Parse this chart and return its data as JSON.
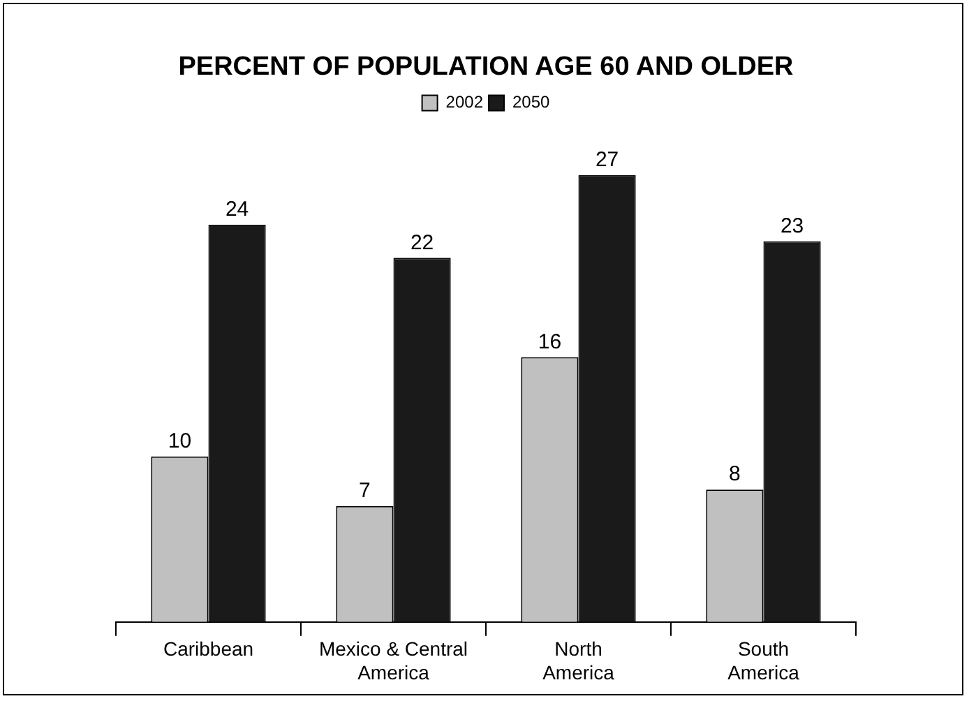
{
  "chart_data": {
    "type": "bar",
    "title": "PERCENT OF POPULATION AGE 60 AND OLDER",
    "categories": [
      "Caribbean",
      "Mexico & Central\nAmerica",
      "North\nAmerica",
      "South\nAmerica"
    ],
    "series": [
      {
        "name": "2002",
        "color": "#c0c0c0",
        "values": [
          10,
          7,
          16,
          8
        ]
      },
      {
        "name": "2050",
        "color": "#1a1a1a",
        "values": [
          24,
          22,
          27,
          23
        ]
      }
    ],
    "data_labels": true,
    "grid": false,
    "legend": "top"
  }
}
